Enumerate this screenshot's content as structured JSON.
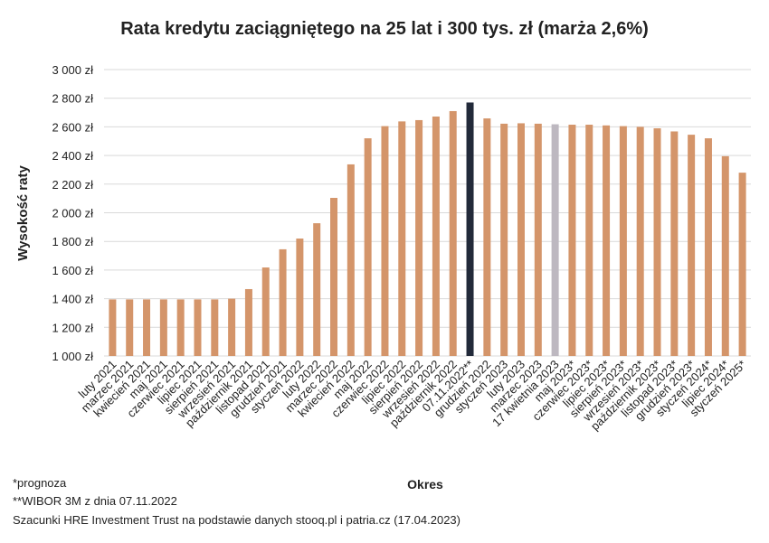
{
  "chart_data": {
    "type": "bar",
    "title": "Rata kredytu zaciągniętego na 25 lat i 300 tys. zł (marża 2,6%)",
    "x_label": "Okres",
    "y_label": "Wysokość raty",
    "categories": [
      "luty 2021",
      "marzec 2021",
      "kwiecień 2021",
      "maj 2021",
      "czerwiec 2021",
      "lipiec 2021",
      "sierpień 2021",
      "wrzesień 2021",
      "październik 2021",
      "listopad 2021",
      "grudzień 2021",
      "styczeń 2022",
      "luty 2022",
      "marzec 2022",
      "kwiecień 2022",
      "maj 2022",
      "czerwiec 2022",
      "lipiec 2022",
      "sierpień 2022",
      "wrzesień 2022",
      "październik 2022",
      "07.11.2022**",
      "grudzień 2022",
      "styczeń 2023",
      "luty 2023",
      "marzec 2023",
      "17 kwietnia 2023",
      "maj 2023*",
      "czerwiec 2023*",
      "lipiec 2023*",
      "sierpień 2023*",
      "wrzesień 2023*",
      "październik 2023*",
      "listopad 2023*",
      "grudzień 2023*",
      "styczeń 2024*",
      "lipiec 2024*",
      "styczeń 2025*"
    ],
    "values": [
      1395,
      1395,
      1395,
      1395,
      1395,
      1395,
      1395,
      1400,
      1467,
      1618,
      1745,
      1820,
      1927,
      2104,
      2338,
      2520,
      2605,
      2638,
      2647,
      2672,
      2710,
      2770,
      2659,
      2622,
      2625,
      2622,
      2618,
      2615,
      2615,
      2610,
      2605,
      2600,
      2590,
      2568,
      2545,
      2520,
      2395,
      2280
    ],
    "colors": [
      "#d4956a",
      "#d4956a",
      "#d4956a",
      "#d4956a",
      "#d4956a",
      "#d4956a",
      "#d4956a",
      "#d4956a",
      "#d4956a",
      "#d4956a",
      "#d4956a",
      "#d4956a",
      "#d4956a",
      "#d4956a",
      "#d4956a",
      "#d4956a",
      "#d4956a",
      "#d4956a",
      "#d4956a",
      "#d4956a",
      "#d4956a",
      "#222a3a",
      "#d4956a",
      "#d4956a",
      "#d4956a",
      "#d4956a",
      "#bdb8c0",
      "#d4956a",
      "#d4956a",
      "#d4956a",
      "#d4956a",
      "#d4956a",
      "#d4956a",
      "#d4956a",
      "#d4956a",
      "#d4956a",
      "#d4956a",
      "#d4956a"
    ],
    "ylim": [
      1000,
      3000
    ],
    "yticks": [
      {
        "value": 1000,
        "label": "1 000 zł"
      },
      {
        "value": 1200,
        "label": "1 200 zł"
      },
      {
        "value": 1400,
        "label": "1 400 zł"
      },
      {
        "value": 1600,
        "label": "1 600 zł"
      },
      {
        "value": 1800,
        "label": "1 800 zł"
      },
      {
        "value": 2000,
        "label": "2 000 zł"
      },
      {
        "value": 2200,
        "label": "2 200 zł"
      },
      {
        "value": 2400,
        "label": "2 400 zł"
      },
      {
        "value": 2600,
        "label": "2 600 zł"
      },
      {
        "value": 2800,
        "label": "2 800 zł"
      },
      {
        "value": 3000,
        "label": "3 000 zł"
      }
    ],
    "grid": true,
    "notes": [
      "*prognoza",
      "**WIBOR 3M z dnia 07.11.2022",
      "Szacunki HRE Investment Trust na podstawie danych stooq.pl i patria.cz (17.04.2023)"
    ]
  }
}
